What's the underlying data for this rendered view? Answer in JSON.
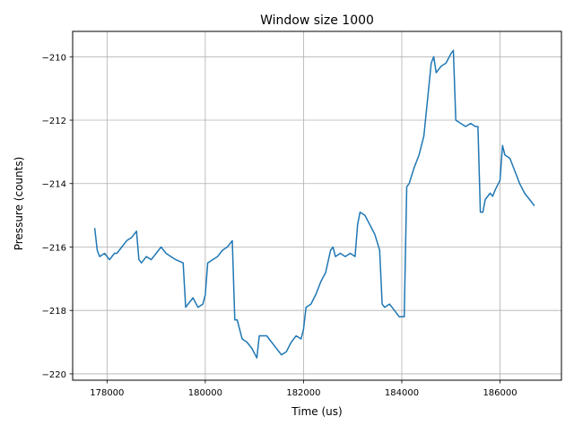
{
  "chart_data": {
    "type": "line",
    "title": "Window size 1000",
    "xlabel": "Time (us)",
    "ylabel": "Pressure (counts)",
    "xlim": [
      177300,
      187250
    ],
    "ylim": [
      -220.2,
      -209.2
    ],
    "xticks": [
      178000,
      180000,
      182000,
      184000,
      186000
    ],
    "yticks": [
      -220,
      -218,
      -216,
      -214,
      -212,
      -210
    ],
    "xtick_labels": [
      "178000",
      "180000",
      "182000",
      "184000",
      "186000"
    ],
    "ytick_labels": [
      "−220",
      "−218",
      "−216",
      "−214",
      "−212",
      "−210"
    ],
    "grid": true,
    "color": "#1f77b4",
    "series": [
      {
        "x": [
          177750,
          177800,
          177850,
          177950,
          178050,
          178150,
          178200,
          178300,
          178400,
          178500,
          178600,
          178650,
          178700,
          178800,
          178900,
          179000,
          179100,
          179200,
          179300,
          179400,
          179550,
          179600,
          179650,
          179750,
          179850,
          179950,
          180000,
          180050,
          180150,
          180250,
          180350,
          180450,
          180550,
          180600,
          180650,
          180750,
          180850,
          180950,
          181050,
          181100,
          181150,
          181250,
          181350,
          181450,
          181550,
          181650,
          181750,
          181850,
          181950,
          182000,
          182050,
          182150,
          182250,
          182350,
          182450,
          182550,
          182600,
          182650,
          182750,
          182850,
          182950,
          183050,
          183100,
          183150,
          183250,
          183350,
          183450,
          183550,
          183600,
          183650,
          183750,
          183850,
          183950,
          184050,
          184100,
          184150,
          184250,
          184350,
          184450,
          184600,
          184650,
          184700,
          184800,
          184900,
          185000,
          185050,
          185100,
          185200,
          185300,
          185400,
          185500,
          185550,
          185600,
          185650,
          185700,
          185800,
          185850,
          185900,
          186000,
          186050,
          186100,
          186200,
          186300,
          186400,
          186500,
          186600,
          186700
        ],
        "y": [
          -215.4,
          -216.1,
          -216.3,
          -216.2,
          -216.4,
          -216.2,
          -216.2,
          -216.0,
          -215.8,
          -215.7,
          -215.5,
          -216.4,
          -216.5,
          -216.3,
          -216.4,
          -216.2,
          -216.0,
          -216.2,
          -216.3,
          -216.4,
          -216.5,
          -217.9,
          -217.8,
          -217.6,
          -217.9,
          -217.8,
          -217.5,
          -216.5,
          -216.4,
          -216.3,
          -216.1,
          -216.0,
          -215.8,
          -218.3,
          -218.3,
          -218.9,
          -219.0,
          -219.2,
          -219.5,
          -218.8,
          -218.8,
          -218.8,
          -219.0,
          -219.2,
          -219.4,
          -219.3,
          -219.0,
          -218.8,
          -218.9,
          -218.6,
          -217.9,
          -217.8,
          -217.5,
          -217.1,
          -216.8,
          -216.1,
          -216.0,
          -216.3,
          -216.2,
          -216.3,
          -216.2,
          -216.3,
          -215.3,
          -214.9,
          -215.0,
          -215.3,
          -215.6,
          -216.1,
          -217.8,
          -217.9,
          -217.8,
          -218.0,
          -218.2,
          -218.2,
          -214.1,
          -214.0,
          -213.5,
          -213.1,
          -212.5,
          -210.2,
          -210.0,
          -210.5,
          -210.3,
          -210.2,
          -209.9,
          -209.8,
          -212.0,
          -212.1,
          -212.2,
          -212.1,
          -212.2,
          -212.2,
          -214.9,
          -214.9,
          -214.5,
          -214.3,
          -214.4,
          -214.2,
          -213.9,
          -212.8,
          -213.1,
          -213.2,
          -213.6,
          -214.0,
          -214.3,
          -214.5,
          -214.7
        ]
      }
    ]
  }
}
